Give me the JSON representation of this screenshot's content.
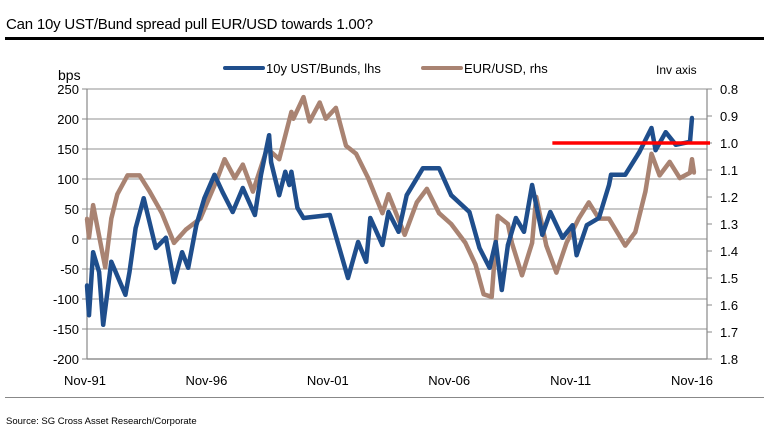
{
  "title": "Can 10y UST/Bund spread pull EUR/USD towards 1.00?",
  "source": "Source: SG Cross Asset Research/Corporate",
  "chart_data": {
    "type": "line",
    "title": "Can 10y UST/Bund spread pull EUR/USD towards 1.00?",
    "left_axis": {
      "label": "bps",
      "range": [
        -200,
        250
      ],
      "ticks": [
        "250",
        "200",
        "150",
        "100",
        "50",
        "0",
        "-50",
        "-100",
        "-150",
        "-200"
      ]
    },
    "right_axis": {
      "label": "Inv axis",
      "inverted": true,
      "range": [
        0.8,
        1.8
      ],
      "ticks": [
        "0.8",
        "0.9",
        "1.0",
        "1.1",
        "1.2",
        "1.3",
        "1.4",
        "1.5",
        "1.6",
        "1.7",
        "1.8"
      ]
    },
    "x_axis": {
      "ticks": [
        "Nov-91",
        "Nov-96",
        "Nov-01",
        "Nov-06",
        "Nov-11",
        "Nov-16"
      ],
      "range": [
        "1991-11",
        "2016-11"
      ]
    },
    "grid": "horizontal",
    "legend": {
      "placement": "top-center"
    },
    "series": [
      {
        "name": "10y UST/Bunds, lhs",
        "axis": "left",
        "color": "#1f4e8c",
        "points": [
          [
            "1991-11",
            -77
          ],
          [
            "1991-12",
            -127
          ],
          [
            "1992-02",
            -22
          ],
          [
            "1992-05",
            -55
          ],
          [
            "1992-07",
            -143
          ],
          [
            "1992-11",
            -38
          ],
          [
            "1993-06",
            -93
          ],
          [
            "1993-08",
            -55
          ],
          [
            "1993-11",
            18
          ],
          [
            "1994-03",
            68
          ],
          [
            "1994-09",
            -15
          ],
          [
            "1995-02",
            2
          ],
          [
            "1995-06",
            -72
          ],
          [
            "1995-10",
            -22
          ],
          [
            "1996-01",
            -48
          ],
          [
            "1996-05",
            23
          ],
          [
            "1996-09",
            68
          ],
          [
            "1997-02",
            107
          ],
          [
            "1997-06",
            78
          ],
          [
            "1997-11",
            45
          ],
          [
            "1998-04",
            85
          ],
          [
            "1998-10",
            40
          ],
          [
            "1999-01",
            107
          ],
          [
            "1999-05",
            173
          ],
          [
            "1999-06",
            128
          ],
          [
            "1999-10",
            73
          ],
          [
            "2000-01",
            112
          ],
          [
            "2000-03",
            90
          ],
          [
            "2000-04",
            112
          ],
          [
            "2000-07",
            52
          ],
          [
            "2000-10",
            35
          ],
          [
            "2001-11",
            40
          ],
          [
            "2002-08",
            -65
          ],
          [
            "2003-01",
            -5
          ],
          [
            "2003-05",
            -38
          ],
          [
            "2003-07",
            35
          ],
          [
            "2004-01",
            -10
          ],
          [
            "2004-04",
            45
          ],
          [
            "2004-09",
            12
          ],
          [
            "2005-01",
            73
          ],
          [
            "2005-09",
            118
          ],
          [
            "2006-05",
            118
          ],
          [
            "2006-11",
            73
          ],
          [
            "2007-08",
            45
          ],
          [
            "2008-01",
            -15
          ],
          [
            "2008-06",
            -48
          ],
          [
            "2008-09",
            -5
          ],
          [
            "2008-12",
            -85
          ],
          [
            "2009-03",
            -10
          ],
          [
            "2009-07",
            35
          ],
          [
            "2009-11",
            12
          ],
          [
            "2010-03",
            90
          ],
          [
            "2010-08",
            7
          ],
          [
            "2010-12",
            45
          ],
          [
            "2011-06",
            2
          ],
          [
            "2011-11",
            23
          ],
          [
            "2012-01",
            -27
          ],
          [
            "2012-06",
            23
          ],
          [
            "2012-12",
            35
          ],
          [
            "2013-05",
            90
          ],
          [
            "2013-06",
            107
          ],
          [
            "2014-01",
            107
          ],
          [
            "2014-08",
            145
          ],
          [
            "2015-02",
            185
          ],
          [
            "2015-04",
            148
          ],
          [
            "2015-09",
            178
          ],
          [
            "2016-02",
            157
          ],
          [
            "2016-09",
            162
          ],
          [
            "2016-10",
            202
          ]
        ]
      },
      {
        "name": "EUR/USD, rhs",
        "axis": "right",
        "color": "#a98372",
        "points": [
          [
            "1991-11",
            1.28
          ],
          [
            "1991-12",
            1.35
          ],
          [
            "1992-02",
            1.23
          ],
          [
            "1992-08",
            1.46
          ],
          [
            "1992-11",
            1.28
          ],
          [
            "1993-02",
            1.19
          ],
          [
            "1993-07",
            1.12
          ],
          [
            "1994-01",
            1.12
          ],
          [
            "1994-06",
            1.18
          ],
          [
            "1994-12",
            1.26
          ],
          [
            "1995-06",
            1.37
          ],
          [
            "1995-12",
            1.32
          ],
          [
            "1996-07",
            1.28
          ],
          [
            "1997-03",
            1.14
          ],
          [
            "1997-07",
            1.06
          ],
          [
            "1997-12",
            1.13
          ],
          [
            "1998-04",
            1.08
          ],
          [
            "1998-09",
            1.18
          ],
          [
            "1999-04",
            1.02
          ],
          [
            "1999-10",
            1.06
          ],
          [
            "2000-04",
            0.885
          ],
          [
            "2000-05",
            0.91
          ],
          [
            "2000-10",
            0.83
          ],
          [
            "2001-01",
            0.92
          ],
          [
            "2001-06",
            0.85
          ],
          [
            "2001-09",
            0.91
          ],
          [
            "2002-02",
            0.87
          ],
          [
            "2002-07",
            1.01
          ],
          [
            "2002-12",
            1.04
          ],
          [
            "2003-06",
            1.13
          ],
          [
            "2004-01",
            1.26
          ],
          [
            "2004-04",
            1.19
          ],
          [
            "2004-12",
            1.34
          ],
          [
            "2005-06",
            1.22
          ],
          [
            "2005-11",
            1.17
          ],
          [
            "2006-05",
            1.26
          ],
          [
            "2006-11",
            1.3
          ],
          [
            "2007-06",
            1.37
          ],
          [
            "2007-11",
            1.45
          ],
          [
            "2008-03",
            1.56
          ],
          [
            "2008-07",
            1.57
          ],
          [
            "2008-10",
            1.27
          ],
          [
            "2009-03",
            1.3
          ],
          [
            "2009-05",
            1.37
          ],
          [
            "2009-10",
            1.49
          ],
          [
            "2010-03",
            1.37
          ],
          [
            "2010-05",
            1.2
          ],
          [
            "2010-10",
            1.38
          ],
          [
            "2011-03",
            1.48
          ],
          [
            "2011-08",
            1.37
          ],
          [
            "2012-02",
            1.28
          ],
          [
            "2012-07",
            1.22
          ],
          [
            "2012-12",
            1.28
          ],
          [
            "2013-05",
            1.28
          ],
          [
            "2014-01",
            1.38
          ],
          [
            "2014-06",
            1.33
          ],
          [
            "2014-11",
            1.18
          ],
          [
            "2015-02",
            1.04
          ],
          [
            "2015-06",
            1.12
          ],
          [
            "2015-11",
            1.07
          ],
          [
            "2016-04",
            1.13
          ],
          [
            "2016-09",
            1.11
          ],
          [
            "2016-10",
            1.06
          ],
          [
            "2016-11",
            1.11
          ]
        ]
      }
    ],
    "reference_line": {
      "axis": "right",
      "value": 1.0,
      "from": "2011-01",
      "color": "#ff0000"
    }
  }
}
